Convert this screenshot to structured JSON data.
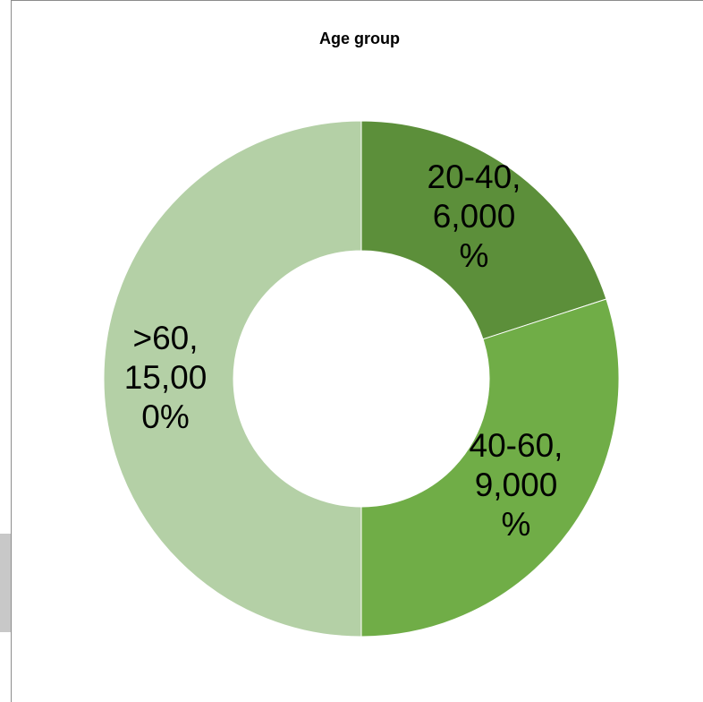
{
  "chart_data": {
    "type": "pie",
    "donut": true,
    "title": "Age group",
    "categories": [
      "20-40",
      "40-60",
      ">60"
    ],
    "values": [
      6000,
      9000,
      15000
    ],
    "colors": [
      "#5c8f3a",
      "#70ad47",
      "#b4d0a6"
    ],
    "labels": [
      [
        "20-40,",
        "6,000",
        "%"
      ],
      [
        "40-60,",
        "9,000",
        "%"
      ],
      [
        ">60,",
        "15,00",
        "0%"
      ]
    ],
    "legend": "none",
    "start_angle_deg": 0,
    "direction": "clockwise"
  }
}
